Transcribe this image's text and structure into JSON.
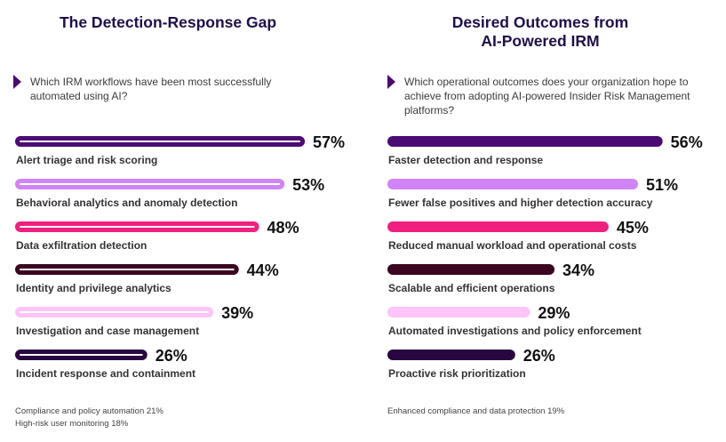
{
  "palette": [
    "#4b0b74",
    "#d084f7",
    "#f0207f",
    "#3c0520",
    "#fcc4f8",
    "#290640"
  ],
  "chart_data": [
    {
      "type": "bar",
      "orientation": "horizontal",
      "style": "outlined",
      "title": "The Detection-Response Gap",
      "question": "Which IRM workflows have been most successfully automated using AI?",
      "categories": [
        "Alert triage and risk scoring",
        "Behavioral analytics and anomaly detection",
        "Data exfiltration detection",
        "Identity and privilege analytics",
        "Investigation and case management",
        "Incident response and containment"
      ],
      "values": [
        57,
        53,
        48,
        44,
        39,
        26
      ],
      "value_labels": [
        "57%",
        "53%",
        "48%",
        "44%",
        "39%",
        "26%"
      ],
      "unit": "%",
      "footnotes": [
        "Compliance and policy automation 21%",
        "High-risk user monitoring 18%"
      ]
    },
    {
      "type": "bar",
      "orientation": "horizontal",
      "style": "filled",
      "title": "Desired Outcomes from AI-Powered IRM",
      "title_lines": [
        "Desired Outcomes from",
        "AI-Powered IRM"
      ],
      "question": "Which operational outcomes does your organization hope to achieve from adopting AI-powered Insider Risk Management platforms?",
      "categories": [
        "Faster detection and response",
        "Fewer false positives and higher detection accuracy",
        "Reduced manual workload and operational costs",
        "Scalable and efficient operations",
        "Automated investigations and policy enforcement",
        "Proactive risk prioritization"
      ],
      "values": [
        56,
        51,
        45,
        34,
        29,
        26
      ],
      "value_labels": [
        "56%",
        "51%",
        "45%",
        "34%",
        "29%",
        "26%"
      ],
      "unit": "%",
      "footnotes": [
        "Enhanced compliance and data protection 19%"
      ]
    }
  ]
}
